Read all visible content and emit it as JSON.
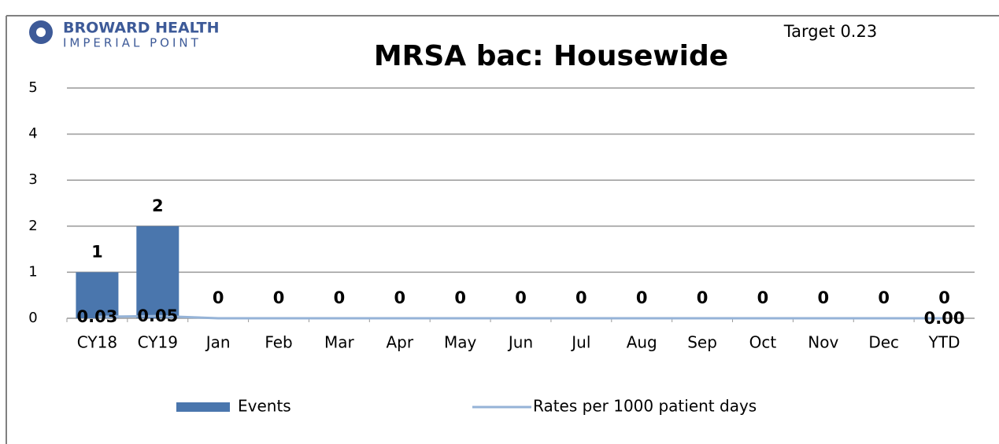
{
  "chart_data": {
    "type": "bar_line",
    "logo": {
      "name": "BROWARD HEALTH",
      "subname": "IMPERIAL POINT"
    },
    "title": "MRSA bac: Housewide",
    "annotation": "Target 0.23",
    "categories": [
      "CY18",
      "CY19",
      "Jan",
      "Feb",
      "Mar",
      "Apr",
      "May",
      "Jun",
      "Jul",
      "Aug",
      "Sep",
      "Oct",
      "Nov",
      "Dec",
      "YTD"
    ],
    "series": [
      {
        "name": "Events",
        "type": "bar",
        "color": "#4a76ad",
        "values": [
          1,
          2,
          0,
          0,
          0,
          0,
          0,
          0,
          0,
          0,
          0,
          0,
          0,
          0,
          0
        ]
      },
      {
        "name": "Rates per 1000 patient days",
        "type": "line",
        "color": "#95b3d7",
        "values": [
          0.03,
          0.05,
          0,
          0,
          0,
          0,
          0,
          0,
          0,
          0,
          0,
          0,
          0,
          0,
          0
        ],
        "value_labels": [
          "0.03",
          "0.05",
          null,
          null,
          null,
          null,
          null,
          null,
          null,
          null,
          null,
          null,
          null,
          null,
          "0.00"
        ]
      }
    ],
    "ylim": [
      0,
      5
    ],
    "yticks": [
      0,
      1,
      2,
      3,
      4,
      5
    ],
    "grid": true,
    "legend": "bottom"
  }
}
